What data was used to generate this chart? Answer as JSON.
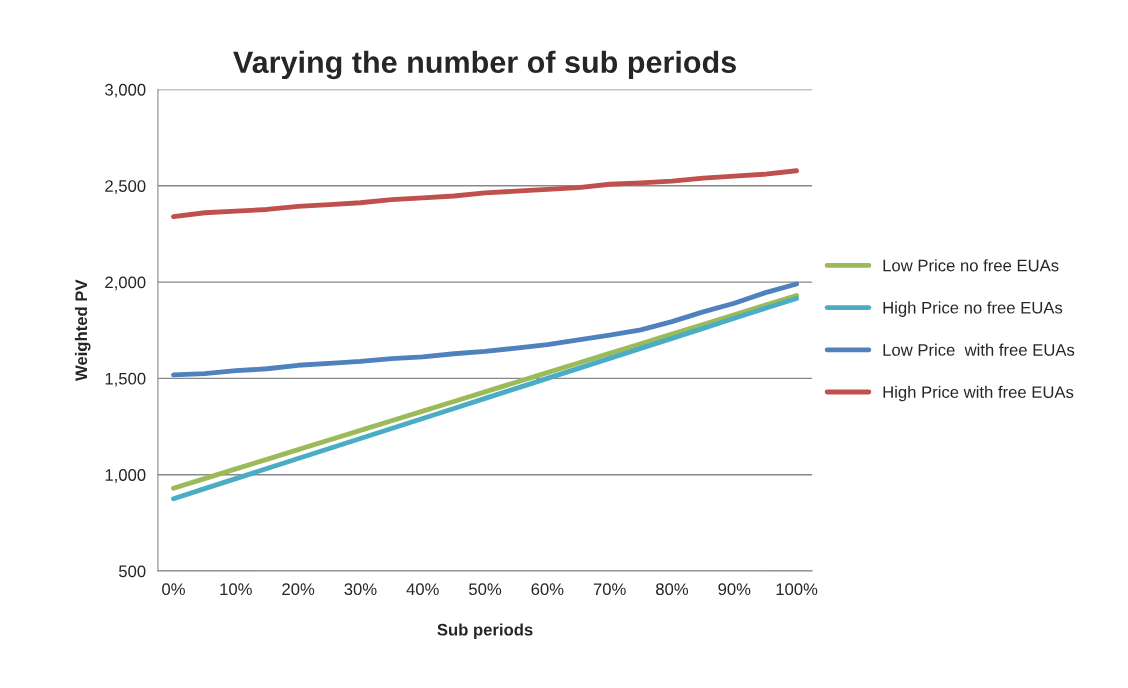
{
  "chart_data": {
    "type": "line",
    "title": "Varying the number of sub periods",
    "xlabel": "Sub periods",
    "ylabel": "Weighted PV",
    "categories": [
      "0%",
      null,
      "10%",
      null,
      "20%",
      null,
      "30%",
      null,
      "40%",
      null,
      "50%",
      null,
      "60%",
      null,
      "70%",
      null,
      "80%",
      null,
      "90%",
      null,
      "100%"
    ],
    "series": [
      {
        "name": "Low Price no free EUAs",
        "color": "#9bbb59",
        "values": [
          930,
          980,
          1030,
          1080,
          1130,
          1180,
          1230,
          1280,
          1330,
          1380,
          1430,
          1480,
          1530,
          1580,
          1630,
          1680,
          1730,
          1780,
          1830,
          1880,
          1930
        ]
      },
      {
        "name": "High Price no free EUAs",
        "color": "#4bacc6",
        "values": [
          875,
          928,
          980,
          1032,
          1084,
          1136,
          1188,
          1240,
          1292,
          1344,
          1396,
          1448,
          1500,
          1552,
          1604,
          1656,
          1708,
          1760,
          1812,
          1864,
          1915
        ]
      },
      {
        "name": "Low Price  with free EUAs",
        "color": "#4f81bd",
        "values": [
          1518,
          1525,
          1540,
          1550,
          1568,
          1578,
          1588,
          1603,
          1612,
          1628,
          1640,
          1657,
          1675,
          1700,
          1725,
          1752,
          1795,
          1845,
          1890,
          1945,
          1990
        ]
      },
      {
        "name": "High Price with free EUAs",
        "color": "#c0504d",
        "values": [
          2340,
          2360,
          2368,
          2377,
          2393,
          2402,
          2412,
          2428,
          2437,
          2447,
          2463,
          2472,
          2481,
          2490,
          2508,
          2515,
          2524,
          2540,
          2550,
          2560,
          2578
        ]
      }
    ],
    "ylim": [
      500,
      3000
    ],
    "yticks": [
      {
        "value": 500,
        "label": "500"
      },
      {
        "value": 1000,
        "label": "1,000"
      },
      {
        "value": 1500,
        "label": "1,500"
      },
      {
        "value": 2000,
        "label": "2,000"
      },
      {
        "value": 2500,
        "label": "2,500"
      },
      {
        "value": 3000,
        "label": "3,000"
      }
    ],
    "grid": "y",
    "legend": "right",
    "marker": "none",
    "line_style": "solid"
  }
}
